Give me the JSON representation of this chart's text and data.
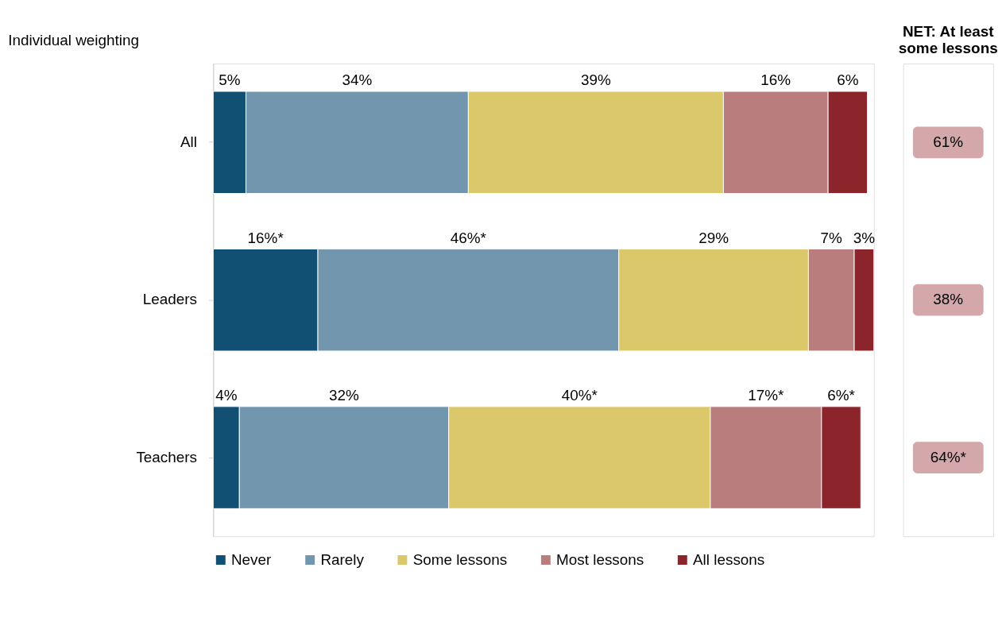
{
  "chart_data": {
    "type": "bar",
    "orientation": "horizontal",
    "stacked": true,
    "title": "Individual weighting",
    "categories": [
      "All",
      "Leaders",
      "Teachers"
    ],
    "tick_labels": "y",
    "legend": "bottom",
    "legend_title": null,
    "series": [
      {
        "name": "Never",
        "color": "#114f73",
        "values": [
          5,
          16,
          4
        ],
        "value_labels": [
          "5%",
          "16%*",
          "4%"
        ]
      },
      {
        "name": "Rarely",
        "color": "#7196ae",
        "values": [
          34,
          46,
          32
        ],
        "value_labels": [
          "34%",
          "46%*",
          "32%"
        ]
      },
      {
        "name": "Some lessons",
        "color": "#dbc86b",
        "values": [
          39,
          29,
          40
        ],
        "value_labels": [
          "39%",
          "29%",
          "40%*"
        ]
      },
      {
        "name": "Most lessons",
        "color": "#b97d7e",
        "values": [
          16,
          7,
          17
        ],
        "value_labels": [
          "16%",
          "7%",
          "17%*"
        ]
      },
      {
        "name": "All lessons",
        "color": "#8b252b",
        "values": [
          6,
          3,
          6
        ],
        "value_labels": [
          "6%",
          "3%",
          "6%*"
        ]
      }
    ],
    "annotations": [
      "NET: At least some lessons",
      "61%",
      "38%",
      "64%*"
    ]
  }
}
